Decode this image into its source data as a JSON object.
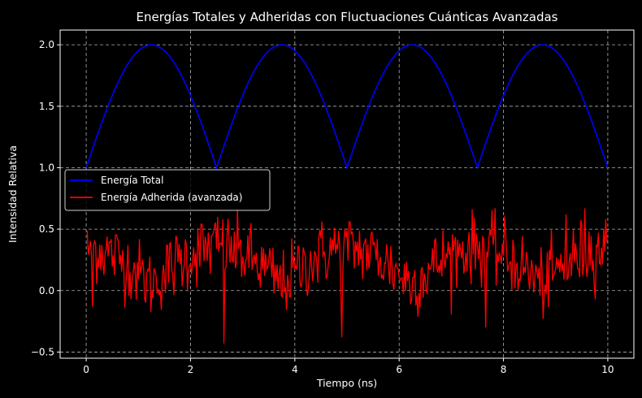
{
  "chart_data": {
    "type": "line",
    "title": "Energías Totales y Adheridas con Fluctuaciones Cuánticas Avanzadas",
    "xlabel": "Tiempo (ns)",
    "ylabel": "Intensidad Relativa",
    "xlim": [
      -0.5,
      10.5
    ],
    "ylim": [
      -0.55,
      2.12
    ],
    "xticks": [
      0,
      2,
      4,
      6,
      8,
      10
    ],
    "yticks": [
      -0.5,
      0.0,
      0.5,
      1.0,
      1.5,
      2.0
    ],
    "xtick_labels": [
      "0",
      "2",
      "4",
      "6",
      "8",
      "10"
    ],
    "ytick_labels": [
      "−0.5",
      "0.0",
      "0.5",
      "1.0",
      "1.5",
      "2.0"
    ],
    "grid": true,
    "legend_position": "center-left",
    "background": "#000000",
    "series": [
      {
        "name": "Energía Total",
        "color": "#0000ff",
        "x_range": [
          0,
          10
        ],
        "samples": 500,
        "peaks": [
          {
            "x": 1.25,
            "y": 2.0
          },
          {
            "x": 3.75,
            "y": 2.0
          },
          {
            "x": 6.25,
            "y": 2.0
          },
          {
            "x": 8.75,
            "y": 2.0
          }
        ],
        "minima": [
          {
            "x": 0,
            "y": 1.0
          },
          {
            "x": 2.5,
            "y": 1.0
          },
          {
            "x": 5.0,
            "y": 1.0
          },
          {
            "x": 7.5,
            "y": 1.0
          },
          {
            "x": 10.0,
            "y": 1.0
          }
        ]
      },
      {
        "name": "Energía Adherida (avanzada)",
        "color": "#ff0000",
        "x_range": [
          0,
          10
        ],
        "samples": 500,
        "mean_min": 0.05,
        "mean_max": 0.35,
        "range_observed": [
          -0.43,
          0.67
        ],
        "anchors": [
          {
            "x": 0.0,
            "y": 0.48
          },
          {
            "x": 0.05,
            "y": 0.35
          },
          {
            "x": 0.12,
            "y": -0.13
          },
          {
            "x": 2.53,
            "y": 0.6
          },
          {
            "x": 2.65,
            "y": -0.43
          },
          {
            "x": 4.9,
            "y": -0.38
          },
          {
            "x": 7.65,
            "y": -0.3
          },
          {
            "x": 9.55,
            "y": 0.67
          },
          {
            "x": 9.2,
            "y": 0.62
          },
          {
            "x": 10.0,
            "y": 0.42
          }
        ]
      }
    ]
  }
}
